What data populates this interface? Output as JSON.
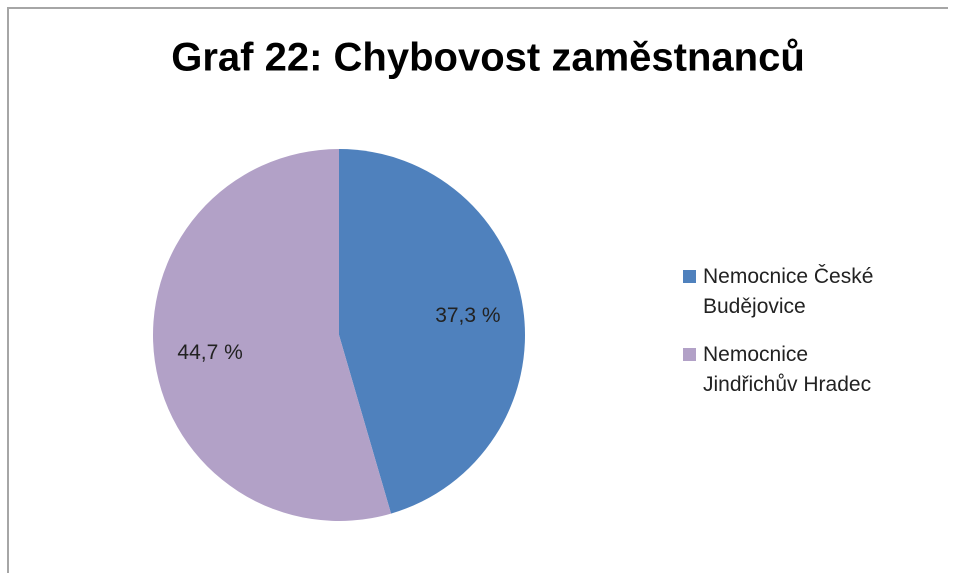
{
  "chart_data": {
    "type": "pie",
    "title": "Graf 22: Chybovost zaměstnanců",
    "categories": [
      "Nemocnice České Budějovice",
      "Nemocnice Jindřichův Hradec"
    ],
    "values": [
      37.3,
      44.7
    ],
    "value_labels": [
      "37,3 %",
      "44,7 %"
    ],
    "colors": [
      "#4f81bd",
      "#b2a1c7"
    ],
    "legend": "right"
  }
}
